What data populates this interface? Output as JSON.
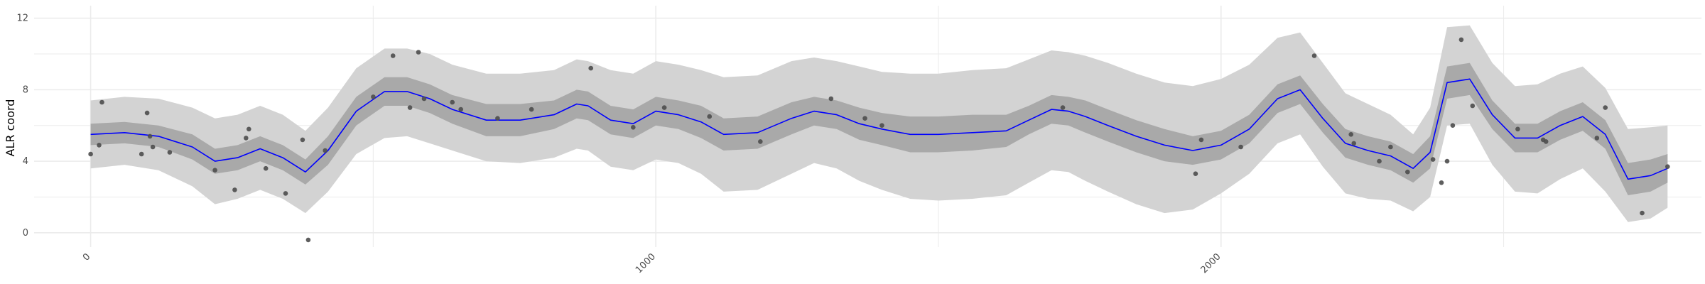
{
  "chart_data": {
    "type": "line",
    "title": "",
    "xlabel": "",
    "ylabel": "ALR coord",
    "xlim": [
      -100,
      2850
    ],
    "ylim": [
      -0.8,
      12.7
    ],
    "x_ticks": [
      0,
      1000,
      2000
    ],
    "y_ticks": [
      0,
      4,
      8,
      12
    ],
    "x_tick_labels": [
      "0",
      "1000",
      "2000"
    ],
    "y_tick_labels": [
      "0",
      "4",
      "8",
      "12"
    ],
    "grid": true,
    "legend": "none",
    "colors": {
      "line": "#0000ff",
      "inner_band": "#a9a9a9",
      "outer_band": "#d3d3d3",
      "points": "#4d4d4d",
      "grid": "#ebebeb"
    },
    "series": [
      {
        "kind": "line",
        "x": [
          0,
          60,
          120,
          180,
          220,
          260,
          300,
          340,
          380,
          420,
          470,
          520,
          560,
          600,
          640,
          700,
          760,
          820,
          860,
          880,
          920,
          960,
          1000,
          1040,
          1080,
          1120,
          1180,
          1240,
          1280,
          1320,
          1360,
          1400,
          1450,
          1500,
          1560,
          1620,
          1660,
          1700,
          1730,
          1760,
          1800,
          1850,
          1900,
          1950,
          2000,
          2050,
          2100,
          2140,
          2180,
          2220,
          2260,
          2300,
          2340,
          2370,
          2400,
          2440,
          2480,
          2520,
          2560,
          2600,
          2640,
          2680,
          2720,
          2760,
          2790
        ],
        "y": [
          5.5,
          5.6,
          5.4,
          4.8,
          4.0,
          4.2,
          4.7,
          4.2,
          3.4,
          4.6,
          6.8,
          7.9,
          7.9,
          7.5,
          6.9,
          6.3,
          6.3,
          6.6,
          7.2,
          7.1,
          6.3,
          6.1,
          6.8,
          6.6,
          6.2,
          5.5,
          5.6,
          6.4,
          6.8,
          6.6,
          6.1,
          5.8,
          5.5,
          5.5,
          5.6,
          5.7,
          6.3,
          6.9,
          6.8,
          6.5,
          6.0,
          5.4,
          4.9,
          4.6,
          4.9,
          5.8,
          7.5,
          8.0,
          6.4,
          5.0,
          4.6,
          4.3,
          3.6,
          4.5,
          8.4,
          8.6,
          6.6,
          5.3,
          5.3,
          6.0,
          6.5,
          5.5,
          3.0,
          3.2,
          3.6
        ]
      },
      {
        "kind": "band",
        "name": "inner",
        "x": [
          0,
          60,
          120,
          180,
          220,
          260,
          300,
          340,
          380,
          420,
          470,
          520,
          560,
          600,
          640,
          700,
          760,
          820,
          860,
          880,
          920,
          960,
          1000,
          1040,
          1080,
          1120,
          1180,
          1240,
          1280,
          1320,
          1360,
          1400,
          1450,
          1500,
          1560,
          1620,
          1660,
          1700,
          1730,
          1760,
          1800,
          1850,
          1900,
          1950,
          2000,
          2050,
          2100,
          2140,
          2180,
          2220,
          2260,
          2300,
          2340,
          2370,
          2400,
          2440,
          2480,
          2520,
          2560,
          2600,
          2640,
          2680,
          2720,
          2760,
          2790
        ],
        "lower": [
          4.9,
          5.0,
          4.8,
          4.1,
          3.3,
          3.5,
          4.0,
          3.5,
          2.7,
          3.8,
          6.0,
          7.1,
          7.1,
          6.7,
          6.1,
          5.4,
          5.4,
          5.8,
          6.4,
          6.3,
          5.5,
          5.3,
          6.0,
          5.8,
          5.3,
          4.6,
          4.7,
          5.5,
          6.0,
          5.8,
          5.2,
          4.9,
          4.5,
          4.5,
          4.6,
          4.8,
          5.5,
          6.1,
          6.0,
          5.6,
          5.1,
          4.5,
          4.0,
          3.8,
          4.1,
          5.0,
          6.7,
          7.2,
          5.6,
          4.2,
          3.8,
          3.5,
          2.8,
          3.6,
          7.5,
          7.7,
          5.8,
          4.5,
          4.5,
          5.2,
          5.7,
          4.7,
          2.1,
          2.3,
          2.8
        ],
        "upper": [
          6.1,
          6.2,
          6.0,
          5.5,
          4.7,
          4.9,
          5.4,
          4.9,
          4.1,
          5.4,
          7.6,
          8.7,
          8.7,
          8.3,
          7.7,
          7.2,
          7.2,
          7.4,
          8.0,
          7.9,
          7.1,
          6.9,
          7.6,
          7.4,
          7.1,
          6.4,
          6.5,
          7.3,
          7.6,
          7.4,
          7.0,
          6.7,
          6.5,
          6.5,
          6.6,
          6.6,
          7.1,
          7.7,
          7.6,
          7.4,
          6.9,
          6.3,
          5.8,
          5.4,
          5.7,
          6.6,
          8.3,
          8.8,
          7.2,
          5.8,
          5.4,
          5.1,
          4.4,
          5.4,
          9.3,
          9.5,
          7.4,
          6.1,
          6.1,
          6.8,
          7.3,
          6.3,
          3.9,
          4.1,
          4.4
        ]
      },
      {
        "kind": "band",
        "name": "outer",
        "x": [
          0,
          60,
          120,
          180,
          220,
          260,
          300,
          340,
          380,
          420,
          470,
          520,
          560,
          600,
          640,
          700,
          760,
          820,
          860,
          880,
          920,
          960,
          1000,
          1040,
          1080,
          1120,
          1180,
          1240,
          1280,
          1320,
          1360,
          1400,
          1450,
          1500,
          1560,
          1620,
          1660,
          1700,
          1730,
          1760,
          1800,
          1850,
          1900,
          1950,
          2000,
          2050,
          2100,
          2140,
          2180,
          2220,
          2260,
          2300,
          2340,
          2370,
          2400,
          2440,
          2480,
          2520,
          2560,
          2600,
          2640,
          2680,
          2720,
          2760,
          2790
        ],
        "lower": [
          3.6,
          3.8,
          3.5,
          2.6,
          1.6,
          1.9,
          2.4,
          1.9,
          1.1,
          2.3,
          4.4,
          5.3,
          5.4,
          5.0,
          4.6,
          4.0,
          3.9,
          4.2,
          4.7,
          4.6,
          3.7,
          3.5,
          4.1,
          3.9,
          3.3,
          2.3,
          2.4,
          3.3,
          3.9,
          3.6,
          2.9,
          2.4,
          1.9,
          1.8,
          1.9,
          2.1,
          2.8,
          3.5,
          3.4,
          2.9,
          2.3,
          1.6,
          1.1,
          1.3,
          2.2,
          3.3,
          5.0,
          5.5,
          3.7,
          2.2,
          1.9,
          1.8,
          1.2,
          2.0,
          6.0,
          6.1,
          3.8,
          2.3,
          2.2,
          3.0,
          3.6,
          2.3,
          0.6,
          0.8,
          1.4
        ],
        "upper": [
          7.4,
          7.6,
          7.5,
          7.0,
          6.4,
          6.6,
          7.1,
          6.6,
          5.7,
          7.0,
          9.2,
          10.3,
          10.3,
          10.0,
          9.4,
          8.9,
          8.9,
          9.1,
          9.7,
          9.6,
          9.1,
          8.9,
          9.6,
          9.4,
          9.1,
          8.7,
          8.8,
          9.6,
          9.8,
          9.6,
          9.3,
          9.0,
          8.9,
          8.9,
          9.1,
          9.2,
          9.7,
          10.2,
          10.1,
          9.9,
          9.5,
          8.9,
          8.4,
          8.2,
          8.6,
          9.4,
          10.9,
          11.2,
          9.5,
          7.8,
          7.2,
          6.6,
          5.5,
          7.0,
          11.5,
          11.6,
          9.5,
          8.2,
          8.3,
          8.9,
          9.3,
          8.1,
          5.8,
          5.9,
          6.0
        ]
      },
      {
        "kind": "scatter",
        "x": [
          0,
          15,
          20,
          90,
          100,
          105,
          110,
          140,
          220,
          255,
          275,
          280,
          310,
          345,
          375,
          385,
          415,
          500,
          535,
          565,
          580,
          590,
          640,
          655,
          720,
          780,
          885,
          960,
          1015,
          1095,
          1185,
          1310,
          1370,
          1400,
          1720,
          1955,
          1965,
          2035,
          2165,
          2230,
          2235,
          2280,
          2300,
          2330,
          2375,
          2390,
          2400,
          2410,
          2425,
          2445,
          2525,
          2570,
          2575,
          2665,
          2680,
          2745,
          2790
        ],
        "y": [
          4.4,
          4.9,
          7.3,
          4.4,
          6.7,
          5.4,
          4.8,
          4.5,
          3.5,
          2.4,
          5.3,
          5.8,
          3.6,
          2.2,
          5.2,
          -0.4,
          4.6,
          7.6,
          9.9,
          7.0,
          10.1,
          7.5,
          7.3,
          6.9,
          6.4,
          6.9,
          9.2,
          5.9,
          7.0,
          6.5,
          5.1,
          7.5,
          6.4,
          6.0,
          7.0,
          3.3,
          5.2,
          4.8,
          9.9,
          5.5,
          5.0,
          4.0,
          4.8,
          3.4,
          4.1,
          2.8,
          4.0,
          6.0,
          10.8,
          7.1,
          5.8,
          5.2,
          5.1,
          5.3,
          7.0,
          1.1,
          3.7
        ]
      }
    ]
  }
}
